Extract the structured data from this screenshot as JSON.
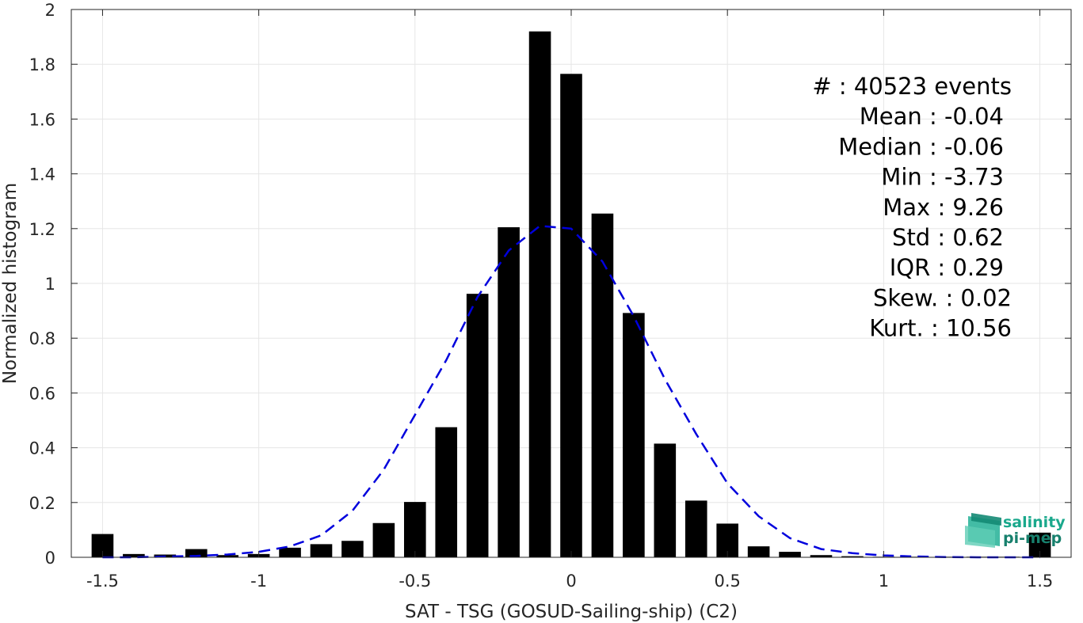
{
  "chart_data": {
    "type": "bar",
    "xlabel": "SAT - TSG (GOSUD-Sailing-ship) (C2)",
    "ylabel": "Normalized histogram",
    "xlim": [
      -1.6,
      1.6
    ],
    "ylim": [
      0,
      2
    ],
    "x_ticks": [
      "-1.5",
      "-1",
      "-0.5",
      "0",
      "0.5",
      "1",
      "1.5"
    ],
    "x_tick_values": [
      -1.5,
      -1,
      -0.5,
      0,
      0.5,
      1,
      1.5
    ],
    "y_ticks": [
      "0",
      "0.2",
      "0.4",
      "0.6",
      "0.8",
      "1",
      "1.2",
      "1.4",
      "1.6",
      "1.8",
      "2"
    ],
    "y_tick_values": [
      0,
      0.2,
      0.4,
      0.6,
      0.8,
      1,
      1.2,
      1.4,
      1.6,
      1.8,
      2
    ],
    "grid": true,
    "bar_width": 0.07,
    "bar_color": "#000000",
    "bins_x": [
      -1.5,
      -1.4,
      -1.3,
      -1.2,
      -1.1,
      -1.0,
      -0.9,
      -0.8,
      -0.7,
      -0.6,
      -0.5,
      -0.4,
      -0.3,
      -0.2,
      -0.1,
      0.0,
      0.1,
      0.2,
      0.3,
      0.4,
      0.5,
      0.6,
      0.7,
      0.8,
      0.9,
      1.0,
      1.1,
      1.2,
      1.3,
      1.4,
      1.5
    ],
    "values": [
      0.085,
      0.012,
      0.01,
      0.03,
      0.008,
      0.012,
      0.035,
      0.048,
      0.06,
      0.125,
      0.202,
      0.475,
      0.962,
      1.205,
      1.92,
      1.765,
      1.255,
      0.892,
      0.415,
      0.207,
      0.123,
      0.04,
      0.02,
      0.008,
      0.004,
      0.002,
      0.002,
      0.002,
      0.002,
      0.002,
      0.09
    ],
    "fit_curve": {
      "style": "dashed",
      "color": "#0000dd",
      "x": [
        -1.5,
        -1.4,
        -1.3,
        -1.2,
        -1.1,
        -1.0,
        -0.9,
        -0.8,
        -0.7,
        -0.6,
        -0.5,
        -0.4,
        -0.3,
        -0.2,
        -0.1,
        0.0,
        0.1,
        0.2,
        0.3,
        0.4,
        0.5,
        0.6,
        0.7,
        0.8,
        0.9,
        1.0,
        1.1,
        1.2,
        1.3,
        1.4,
        1.5
      ],
      "y": [
        0.0,
        0.0,
        0.003,
        0.005,
        0.01,
        0.02,
        0.04,
        0.08,
        0.17,
        0.32,
        0.52,
        0.72,
        0.95,
        1.12,
        1.21,
        1.2,
        1.08,
        0.88,
        0.65,
        0.45,
        0.27,
        0.15,
        0.07,
        0.03,
        0.015,
        0.007,
        0.003,
        0.001,
        0.0,
        0.0,
        0.0
      ]
    },
    "stats": [
      "#  : 40523 events",
      "Mean : -0.04",
      "Median : -0.06",
      "Min : -3.73",
      "Max : 9.26",
      "Std : 0.62",
      "IQR : 0.29",
      "Skew. : 0.02",
      "Kurt. : 10.56"
    ]
  },
  "logo": {
    "line1": "salinity",
    "line2": "pi-mep",
    "color1": "#1aa88c",
    "color2": "#17806d"
  }
}
